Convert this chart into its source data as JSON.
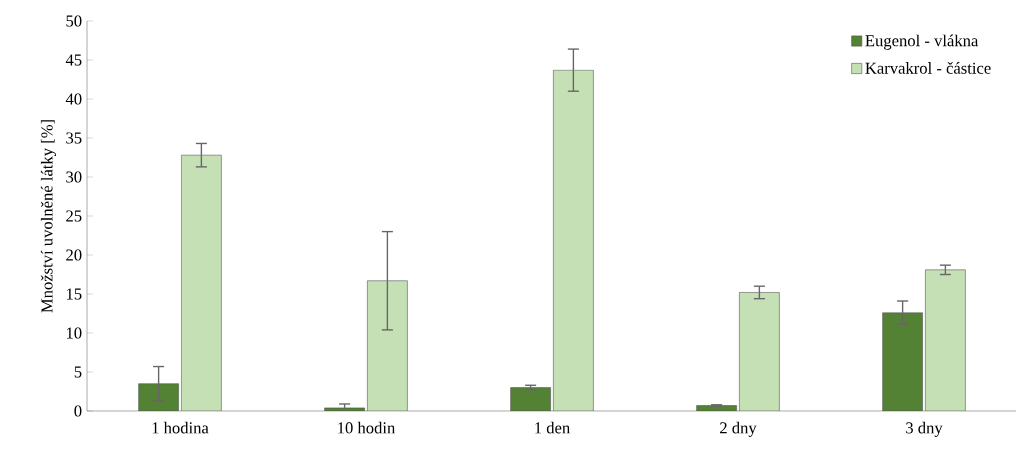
{
  "chart_data": {
    "type": "bar",
    "ylabel": "Množství uvolněné látky [%]",
    "categories": [
      "1 hodina",
      "10 hodin",
      "1 den",
      "2 dny",
      "3 dny"
    ],
    "series": [
      {
        "name": "Eugenol - vlákna",
        "color": "#548235",
        "values": [
          3.5,
          0.4,
          3.0,
          0.7,
          12.6
        ],
        "errors": [
          2.2,
          0.5,
          0.3,
          0.1,
          1.5
        ]
      },
      {
        "name": "Karvakrol - částice",
        "color": "#c5e0b4",
        "values": [
          32.8,
          16.7,
          43.7,
          15.2,
          18.1
        ],
        "errors": [
          1.5,
          6.3,
          2.7,
          0.8,
          0.6
        ]
      }
    ],
    "ylim": [
      0,
      50
    ],
    "yticks": [
      0,
      5,
      10,
      15,
      20,
      25,
      30,
      35,
      40,
      45,
      50
    ],
    "legend": "top right",
    "grid": false
  }
}
